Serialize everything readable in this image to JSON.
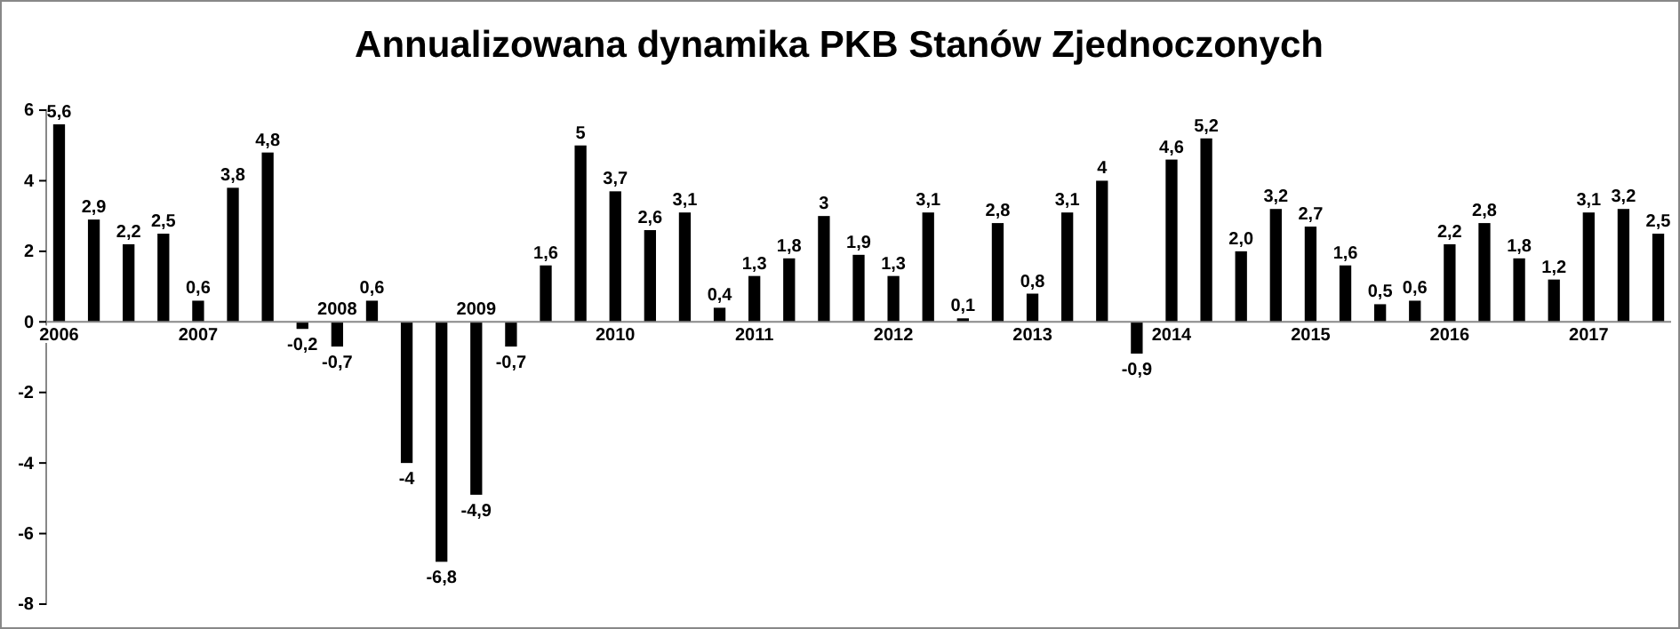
{
  "chart_data": {
    "type": "bar",
    "title": "Annualizowana dynamika PKB Stanów Zjednoczonych",
    "categories": [
      "2006",
      null,
      null,
      null,
      "2007",
      null,
      null,
      null,
      "2008",
      null,
      null,
      null,
      "2009",
      null,
      null,
      null,
      "2010",
      null,
      null,
      null,
      "2011",
      null,
      null,
      null,
      "2012",
      null,
      null,
      null,
      "2013",
      null,
      null,
      null,
      "2014",
      null,
      null,
      null,
      "2015",
      null,
      null,
      null,
      "2016",
      null,
      null,
      null,
      "2017",
      null,
      null
    ],
    "values": [
      5.6,
      2.9,
      2.2,
      2.5,
      0.6,
      3.8,
      4.8,
      -0.2,
      -0.7,
      0.6,
      -4,
      -6.8,
      -4.9,
      -0.7,
      1.6,
      5,
      3.7,
      2.6,
      3.1,
      0.4,
      1.3,
      1.8,
      3,
      1.9,
      1.3,
      3.1,
      0.1,
      2.8,
      0.8,
      3.1,
      4,
      -0.9,
      4.6,
      5.2,
      2.0,
      3.2,
      2.7,
      1.6,
      0.5,
      0.6,
      2.2,
      2.8,
      1.8,
      1.2,
      3.1,
      3.2,
      2.5
    ],
    "value_labels": [
      "5,6",
      "2,9",
      "2,2",
      "2,5",
      "0,6",
      "3,8",
      "4,8",
      "-0,2",
      "-0,7",
      "0,6",
      "-4",
      "-6,8",
      "-4,9",
      "-0,7",
      "1,6",
      "5",
      "3,7",
      "2,6",
      "3,1",
      "0,4",
      "1,3",
      "1,8",
      "3",
      "1,9",
      "1,3",
      "3,1",
      "0,1",
      "2,8",
      "0,8",
      "3,1",
      "4",
      "-0,9",
      "4,6",
      "5,2",
      "2,0",
      "3,2",
      "2,7",
      "1,6",
      "0,5",
      "0,6",
      "2,2",
      "2,8",
      "1,8",
      "1,2",
      "3,1",
      "3,2",
      "2,5"
    ],
    "color": "#000000",
    "ylim": [
      -8,
      6
    ],
    "yticks": [
      -8,
      -6,
      -4,
      -2,
      0,
      2,
      4,
      6
    ],
    "grid": false
  }
}
